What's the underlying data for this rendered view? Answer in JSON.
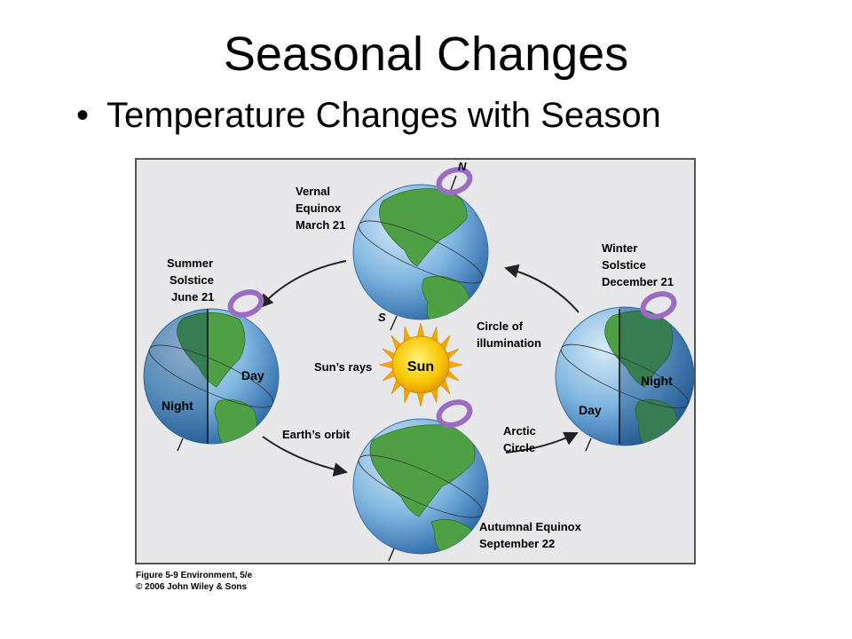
{
  "title": "Seasonal Changes",
  "bullet": "Temperature Changes with Season",
  "diagram": {
    "positions": {
      "vernal": {
        "name": "Vernal",
        "name2": "Equinox",
        "date": "March 21"
      },
      "summer": {
        "name": "Summer",
        "name2": "Solstice",
        "date": "June 21"
      },
      "winter": {
        "name": "Winter",
        "name2": "Solstice",
        "date": "December 21"
      },
      "autumnal": {
        "name": "Autumnal Equinox",
        "date": "September 22"
      }
    },
    "labels": {
      "sun": "Sun",
      "suns_rays": "Sun’s rays",
      "circle_of_illumination_1": "Circle of",
      "circle_of_illumination_2": "illumination",
      "earths_orbit": "Earth’s orbit",
      "arctic_circle_1": "Arctic",
      "arctic_circle_2": "Circle",
      "day": "Day",
      "night": "Night",
      "north": "N",
      "south": "S"
    },
    "caption_line1": "Figure 5-9 Environment, 5/e",
    "caption_line2": "© 2006 John Wiley & Sons",
    "colors": {
      "ocean": "#5f9fd6",
      "ocean_dark": "#2e6aa8",
      "land": "#4fa044",
      "sun": "#f5b800",
      "rotation_arrow": "#c9a6e0",
      "background": "#e8e8ea"
    }
  }
}
